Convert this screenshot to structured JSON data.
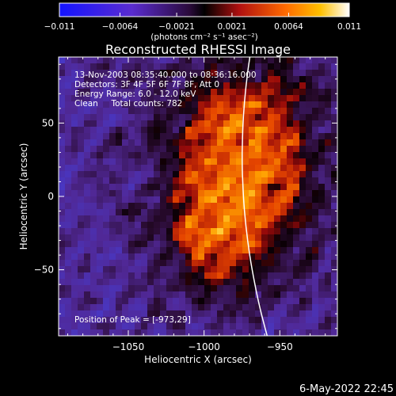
{
  "colorbar": {
    "tick_labels": [
      "-0.011",
      "-0.0064",
      "-0.0021",
      "0.0021",
      "0.0064",
      "0.011"
    ],
    "min": -0.011,
    "max": 0.011,
    "unit_label": "(photons cm⁻² s⁻¹ asec⁻²)"
  },
  "chart_data": {
    "type": "heatmap",
    "title": "Reconstructed RHESSI Image",
    "xlabel": "Heliocentric X (arcsec)",
    "ylabel": "Heliocentric Y (arcsec)",
    "xlim": [
      -1096,
      -912
    ],
    "ylim": [
      -95,
      95
    ],
    "x_ticks": [
      -1050,
      -1000,
      -950
    ],
    "y_ticks": [
      50,
      0,
      -50
    ],
    "x_tick_labels": [
      "−1050",
      "−1000",
      "−950"
    ],
    "y_tick_labels": [
      "50",
      "0",
      "−50"
    ],
    "peak_position": [
      -973,
      29
    ],
    "info_lines": [
      "13-Nov-2003 08:35:40.000 to 08:36:16.000",
      "Detectors: 3F 4F 5F 6F 7F 8F, Att 0",
      "Energy Range: 6.0 - 12.0 keV",
      "Clean     Total counts: 782"
    ],
    "peak_text": "Position of Peak = [-973,29]",
    "limb_color": "#ffffff"
  },
  "footer": {
    "date": "6-May-2022 22:45"
  }
}
